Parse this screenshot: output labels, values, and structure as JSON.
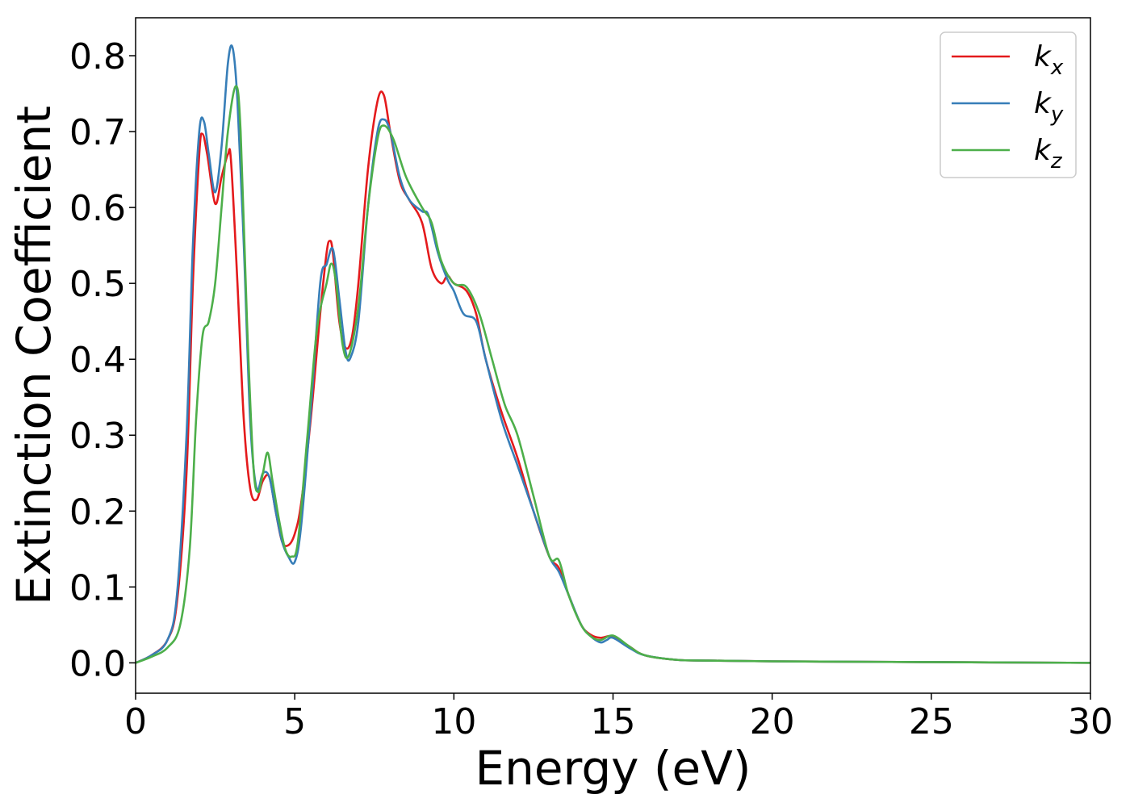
{
  "chart_data": {
    "type": "line",
    "xlabel": "Energy (eV)",
    "ylabel": "Extinction Coefficient",
    "xlim": [
      0,
      30
    ],
    "ylim": [
      -0.04,
      0.85
    ],
    "xticks": [
      0,
      5,
      10,
      15,
      20,
      25,
      30
    ],
    "xtick_labels": [
      "0",
      "5",
      "10",
      "15",
      "20",
      "25",
      "30"
    ],
    "yticks": [
      0.0,
      0.1,
      0.2,
      0.3,
      0.4,
      0.5,
      0.6,
      0.7,
      0.8
    ],
    "ytick_labels": [
      "0.0",
      "0.1",
      "0.2",
      "0.3",
      "0.4",
      "0.5",
      "0.6",
      "0.7",
      "0.8"
    ],
    "grid": false,
    "legend_position": "top-right",
    "series": [
      {
        "name": "k_x",
        "label_base": "k",
        "label_sub": "x",
        "color": "#e41a1c",
        "x": [
          0,
          0.5,
          1.0,
          1.3,
          1.6,
          1.8,
          2.0,
          2.1,
          2.25,
          2.5,
          2.7,
          2.9,
          3.0,
          3.2,
          3.4,
          3.6,
          3.8,
          4.0,
          4.2,
          4.4,
          4.6,
          4.8,
          5.0,
          5.2,
          5.5,
          5.8,
          6.0,
          6.1,
          6.2,
          6.4,
          6.6,
          6.8,
          7.0,
          7.3,
          7.6,
          7.8,
          8.0,
          8.3,
          8.6,
          9.0,
          9.3,
          9.6,
          9.8,
          10.0,
          10.4,
          10.7,
          11.0,
          11.5,
          12.0,
          12.5,
          13.0,
          13.3,
          13.6,
          14.0,
          14.3,
          14.6,
          15.0,
          15.5,
          16.0,
          17.0,
          18.0,
          20.0,
          25.0,
          30.0
        ],
        "y": [
          0.0,
          0.01,
          0.03,
          0.08,
          0.25,
          0.5,
          0.67,
          0.697,
          0.67,
          0.605,
          0.64,
          0.67,
          0.66,
          0.5,
          0.32,
          0.23,
          0.215,
          0.24,
          0.245,
          0.2,
          0.16,
          0.155,
          0.17,
          0.21,
          0.32,
          0.46,
          0.54,
          0.556,
          0.54,
          0.45,
          0.415,
          0.43,
          0.5,
          0.65,
          0.74,
          0.748,
          0.7,
          0.635,
          0.61,
          0.58,
          0.52,
          0.5,
          0.51,
          0.5,
          0.49,
          0.46,
          0.4,
          0.33,
          0.27,
          0.2,
          0.14,
          0.125,
          0.09,
          0.05,
          0.037,
          0.033,
          0.035,
          0.022,
          0.01,
          0.004,
          0.003,
          0.002,
          0.001,
          0.0
        ]
      },
      {
        "name": "k_y",
        "label_base": "k",
        "label_sub": "y",
        "color": "#377eb8",
        "x": [
          0,
          0.5,
          1.0,
          1.3,
          1.6,
          1.8,
          2.0,
          2.15,
          2.3,
          2.5,
          2.7,
          2.9,
          3.05,
          3.2,
          3.4,
          3.6,
          3.8,
          4.0,
          4.2,
          4.4,
          4.6,
          4.8,
          5.0,
          5.2,
          5.5,
          5.8,
          6.0,
          6.2,
          6.4,
          6.6,
          6.75,
          7.0,
          7.3,
          7.6,
          7.8,
          8.0,
          8.3,
          8.6,
          9.0,
          9.2,
          9.5,
          9.8,
          10.0,
          10.3,
          10.7,
          11.0,
          11.5,
          12.0,
          12.5,
          13.0,
          13.3,
          13.6,
          14.0,
          14.3,
          14.6,
          14.8,
          15.0,
          15.5,
          16.0,
          17.0,
          18.0,
          20.0,
          25.0,
          30.0
        ],
        "y": [
          0.0,
          0.01,
          0.03,
          0.09,
          0.3,
          0.55,
          0.7,
          0.713,
          0.67,
          0.62,
          0.68,
          0.79,
          0.81,
          0.74,
          0.55,
          0.32,
          0.23,
          0.25,
          0.245,
          0.2,
          0.16,
          0.14,
          0.133,
          0.18,
          0.33,
          0.5,
          0.525,
          0.545,
          0.48,
          0.41,
          0.402,
          0.45,
          0.6,
          0.7,
          0.716,
          0.7,
          0.64,
          0.61,
          0.595,
          0.59,
          0.54,
          0.505,
          0.49,
          0.46,
          0.45,
          0.4,
          0.32,
          0.26,
          0.2,
          0.14,
          0.12,
          0.09,
          0.05,
          0.035,
          0.027,
          0.03,
          0.033,
          0.02,
          0.01,
          0.004,
          0.003,
          0.002,
          0.001,
          0.0
        ]
      },
      {
        "name": "k_z",
        "label_base": "k",
        "label_sub": "z",
        "color": "#4daf4a",
        "x": [
          0,
          0.5,
          1.0,
          1.4,
          1.7,
          1.9,
          2.1,
          2.3,
          2.5,
          2.7,
          2.9,
          3.15,
          3.3,
          3.5,
          3.7,
          3.85,
          4.0,
          4.15,
          4.3,
          4.5,
          4.7,
          4.9,
          5.1,
          5.4,
          5.7,
          6.0,
          6.15,
          6.3,
          6.5,
          6.7,
          7.0,
          7.3,
          7.6,
          7.8,
          8.1,
          8.5,
          9.0,
          9.3,
          9.6,
          10.0,
          10.4,
          10.8,
          11.2,
          11.6,
          12.0,
          12.5,
          13.0,
          13.3,
          13.6,
          14.0,
          14.3,
          14.6,
          15.0,
          15.5,
          16.0,
          17.0,
          18.0,
          20.0,
          25.0,
          30.0
        ],
        "y": [
          0.0,
          0.008,
          0.02,
          0.05,
          0.15,
          0.32,
          0.43,
          0.45,
          0.5,
          0.6,
          0.7,
          0.76,
          0.7,
          0.45,
          0.26,
          0.225,
          0.25,
          0.277,
          0.24,
          0.19,
          0.15,
          0.14,
          0.16,
          0.3,
          0.44,
          0.5,
          0.526,
          0.5,
          0.42,
          0.405,
          0.47,
          0.6,
          0.69,
          0.708,
          0.69,
          0.64,
          0.6,
          0.58,
          0.53,
          0.5,
          0.495,
          0.46,
          0.4,
          0.34,
          0.3,
          0.22,
          0.14,
          0.135,
          0.09,
          0.05,
          0.035,
          0.03,
          0.036,
          0.022,
          0.01,
          0.004,
          0.003,
          0.002,
          0.001,
          0.0
        ]
      }
    ]
  }
}
